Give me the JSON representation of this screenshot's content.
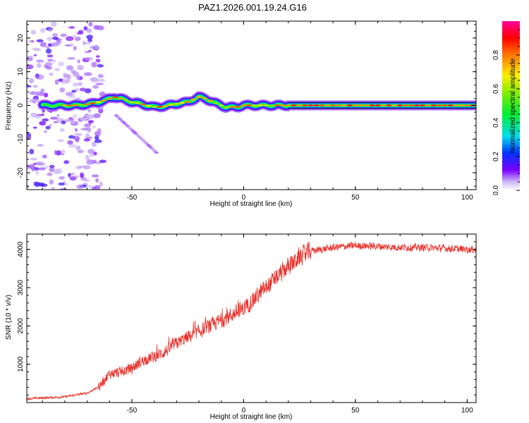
{
  "title": "PAZ1.2026.001.19.24.G16",
  "chart_data": [
    {
      "type": "heatmap",
      "name": "spectrogram",
      "xlabel": "Height of straight line (km)",
      "ylabel": "Frequency (Hz)",
      "xlim": [
        -97,
        104
      ],
      "ylim": [
        -25,
        25
      ],
      "x_ticks": [
        -50,
        0,
        50,
        100
      ],
      "x_tick_labels": [
        "-50",
        "0",
        "50",
        "100"
      ],
      "y_ticks": [
        -20,
        -10,
        0,
        10,
        20
      ],
      "y_tick_labels": [
        "-20",
        "-10",
        "0",
        "10",
        "20"
      ],
      "colorbar": {
        "label": "Normalized spectral amplitude",
        "range": [
          0,
          1
        ],
        "ticks": [
          0.0,
          0.2,
          0.4,
          0.6,
          0.8
        ],
        "tick_labels": [
          "0.0",
          "0.2",
          "0.4",
          "0.6",
          "0.8"
        ]
      },
      "ridge": {
        "description_points_x": [
          -85,
          -75,
          -68,
          -62,
          -58,
          -55,
          -50,
          -45,
          -40,
          -35,
          -30,
          -25,
          -20,
          -17,
          -12,
          -8,
          -3,
          0,
          5,
          10,
          20,
          30,
          50,
          70,
          90,
          104
        ],
        "description_points_y": [
          0,
          0,
          0.5,
          1.5,
          2.5,
          2.0,
          1.0,
          0.3,
          -0.5,
          -0.2,
          0.5,
          1.0,
          2.5,
          2.0,
          0.5,
          -0.5,
          -0.5,
          0,
          0,
          0,
          0,
          0,
          0,
          0,
          0,
          0
        ]
      }
    },
    {
      "type": "line",
      "name": "snr",
      "xlabel": "Height of straight line (km)",
      "ylabel": "SNR (10 * v/v)",
      "xlim": [
        -97,
        104
      ],
      "ylim": [
        0,
        4400
      ],
      "x_ticks": [
        -50,
        0,
        50,
        100
      ],
      "x_tick_labels": [
        "-50",
        "0",
        "50",
        "100"
      ],
      "y_ticks": [
        1000,
        2000,
        3000,
        4000
      ],
      "y_tick_labels": [
        "1000",
        "2000",
        "3000",
        "4000"
      ],
      "color": "#e8302a",
      "trend_x": [
        -97,
        -80,
        -70,
        -65,
        -62,
        -60,
        -55,
        -50,
        -45,
        -40,
        -36,
        -30,
        -20,
        -10,
        0,
        10,
        20,
        25,
        30,
        35,
        40,
        50,
        60,
        70,
        80,
        90,
        100,
        104
      ],
      "trend_y": [
        100,
        150,
        250,
        400,
        600,
        750,
        800,
        900,
        1100,
        1200,
        1300,
        1550,
        1850,
        2150,
        2450,
        3000,
        3550,
        3800,
        3950,
        4000,
        4050,
        4100,
        4080,
        4050,
        4050,
        4030,
        4000,
        3980
      ],
      "noise_amp_y": 150
    }
  ]
}
